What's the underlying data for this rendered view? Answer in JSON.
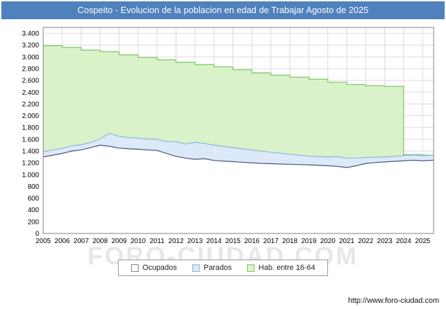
{
  "title_bar": {
    "text": "Cospeito - Evolucion de la poblacion en edad de Trabajar Agosto de 2025",
    "bg": "#4f81bd",
    "fg": "#ffffff"
  },
  "watermark": "FORO-CIUDAD.COM",
  "footer": {
    "url": "http://www.foro-ciudad.com"
  },
  "legend": {
    "items": [
      {
        "label": "Ocupados",
        "fill": "#ffffff",
        "stroke": "#7f7f7f"
      },
      {
        "label": "Parados",
        "fill": "#dce9f8",
        "stroke": "#8fb4da"
      },
      {
        "label": "Hab. entre 16-64",
        "fill": "#d9f2c9",
        "stroke": "#7fc465"
      }
    ]
  },
  "chart_data": {
    "type": "area",
    "title": "Cospeito - Evolucion de la poblacion en edad de Trabajar Agosto de 2025",
    "xlabel": "",
    "ylabel": "",
    "xlim": [
      2005,
      2025.58
    ],
    "ylim": [
      0,
      3500
    ],
    "grid": true,
    "grid_color": "#d9d9d9",
    "legend_position": "bottom",
    "x_ticks": [
      2005,
      2006,
      2007,
      2008,
      2009,
      2010,
      2011,
      2012,
      2013,
      2014,
      2015,
      2016,
      2017,
      2018,
      2019,
      2020,
      2021,
      2022,
      2023,
      2024,
      2025
    ],
    "x_tick_labels": [
      "2005",
      "2006",
      "2007",
      "2008",
      "2009",
      "2010",
      "2011",
      "2012",
      "2013",
      "2014",
      "2015",
      "2016",
      "2017",
      "2018",
      "2019",
      "2020",
      "2021",
      "2022",
      "2023",
      "2024",
      "2025"
    ],
    "y_ticks": [
      0,
      200,
      400,
      600,
      800,
      1000,
      1200,
      1400,
      1600,
      1800,
      2000,
      2200,
      2400,
      2600,
      2800,
      3000,
      3200,
      3400
    ],
    "y_tick_labels": [
      "0",
      "200",
      "400",
      "600",
      "800",
      "1.000",
      "1.200",
      "1.400",
      "1.600",
      "1.800",
      "2.000",
      "2.200",
      "2.400",
      "2.600",
      "2.800",
      "3.000",
      "3.200",
      "3.400"
    ],
    "series": [
      {
        "id": "hab-16-64",
        "name": "Hab. entre 16-64",
        "render": "step",
        "fill": "#d9f2c9",
        "stroke": "#7fc465",
        "x": [
          2005,
          2006,
          2007,
          2008,
          2009,
          2010,
          2011,
          2012,
          2013,
          2014,
          2015,
          2016,
          2017,
          2018,
          2019,
          2020,
          2021,
          2022,
          2023,
          2024,
          2025
        ],
        "values": [
          3190,
          3160,
          3115,
          3090,
          3035,
          2990,
          2950,
          2910,
          2870,
          2830,
          2780,
          2730,
          2690,
          2655,
          2620,
          2570,
          2530,
          2510,
          2500,
          1340,
          1330
        ]
      },
      {
        "id": "parados",
        "name": "Parados",
        "render": "line",
        "stack_on": "Ocupados",
        "fill": "#dce9f8",
        "stroke": "#8fb4da",
        "x": [
          2005,
          2005.5,
          2006,
          2006.5,
          2007,
          2007.5,
          2008,
          2008.5,
          2009,
          2009.5,
          2010,
          2010.5,
          2011,
          2011.5,
          2012,
          2012.5,
          2013,
          2013.5,
          2014,
          2014.5,
          2015,
          2015.5,
          2016,
          2016.5,
          2017,
          2017.5,
          2018,
          2018.5,
          2019,
          2019.5,
          2020,
          2020.5,
          2021,
          2021.5,
          2022,
          2022.5,
          2023,
          2023.5,
          2024,
          2024.5,
          2025,
          2025.58
        ],
        "values": [
          90,
          90,
          85,
          90,
          90,
          85,
          110,
          220,
          200,
          190,
          190,
          185,
          190,
          200,
          250,
          240,
          290,
          260,
          260,
          250,
          240,
          230,
          220,
          210,
          195,
          185,
          170,
          160,
          150,
          145,
          150,
          165,
          160,
          130,
          100,
          90,
          85,
          85,
          90,
          90,
          85,
          85
        ]
      },
      {
        "id": "ocupados",
        "name": "Ocupados",
        "render": "line",
        "fill": "#ffffff",
        "stroke": "#44527a",
        "x": [
          2005,
          2005.5,
          2006,
          2006.5,
          2007,
          2007.5,
          2008,
          2008.5,
          2009,
          2009.5,
          2010,
          2010.5,
          2011,
          2011.5,
          2012,
          2012.5,
          2013,
          2013.5,
          2014,
          2014.5,
          2015,
          2015.5,
          2016,
          2016.5,
          2017,
          2017.5,
          2018,
          2018.5,
          2019,
          2019.5,
          2020,
          2020.5,
          2021,
          2021.5,
          2022,
          2022.5,
          2023,
          2023.5,
          2024,
          2024.5,
          2025,
          2025.58
        ],
        "values": [
          1300,
          1330,
          1360,
          1400,
          1420,
          1460,
          1500,
          1480,
          1450,
          1440,
          1430,
          1420,
          1410,
          1360,
          1310,
          1280,
          1260,
          1270,
          1240,
          1230,
          1220,
          1210,
          1200,
          1190,
          1185,
          1180,
          1175,
          1170,
          1165,
          1160,
          1150,
          1140,
          1120,
          1150,
          1190,
          1205,
          1215,
          1225,
          1235,
          1245,
          1235,
          1245
        ]
      }
    ]
  }
}
